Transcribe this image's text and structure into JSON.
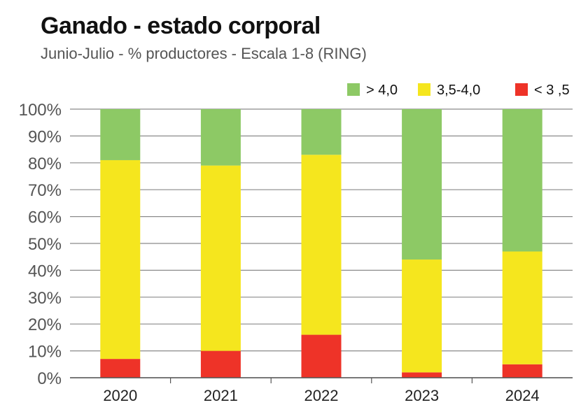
{
  "chart_data": {
    "type": "bar",
    "stacked": true,
    "title": "Ganado - estado corporal",
    "subtitle": "Junio-Julio - % productores - Escala 1-8 (RING)",
    "categories": [
      "2020",
      "2021",
      "2022",
      "2023",
      "2024"
    ],
    "series": [
      {
        "name": "< 3 ,5",
        "color": "#ee3328",
        "values": [
          7,
          10,
          16,
          2,
          5
        ]
      },
      {
        "name": "3,5-4,0",
        "color": "#f5e61e",
        "values": [
          74,
          69,
          67,
          42,
          42
        ]
      },
      {
        "name": "> 4,0",
        "color": "#8dc965",
        "values": [
          19,
          21,
          17,
          56,
          53
        ]
      }
    ],
    "legend_order": [
      "> 4,0",
      "3,5-4,0",
      "< 3 ,5"
    ],
    "y_ticks": [
      "0%",
      "10%",
      "20%",
      "30%",
      "40%",
      "50%",
      "60%",
      "70%",
      "80%",
      "90%",
      "100%"
    ],
    "ylim": [
      0,
      100
    ],
    "xlabel": "",
    "ylabel": "",
    "legend_position": "top-right",
    "grid": true
  }
}
